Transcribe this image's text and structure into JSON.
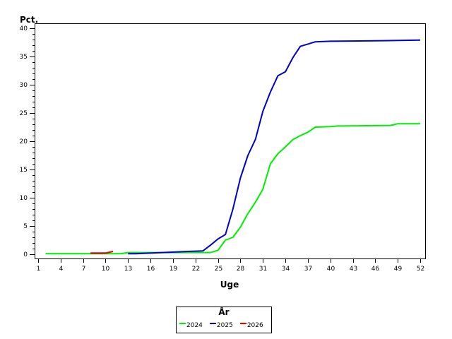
{
  "chart_data": {
    "type": "line",
    "title": "",
    "xlabel": "Uge",
    "ylabel": "Pct.",
    "xlim": [
      1,
      52
    ],
    "ylim": [
      0,
      40
    ],
    "x_ticks": [
      1,
      4,
      7,
      10,
      13,
      16,
      19,
      22,
      25,
      28,
      31,
      34,
      37,
      40,
      43,
      46,
      49,
      52
    ],
    "y_ticks": [
      0,
      5,
      10,
      15,
      20,
      25,
      30,
      35,
      40
    ],
    "y_minor_step": 1,
    "grid": false,
    "legend": {
      "title": "År",
      "position": "bottom"
    },
    "series": [
      {
        "name": "2024",
        "color": "#00ee00",
        "x": [
          2,
          12,
          13,
          24,
          25,
          26,
          27,
          28,
          29,
          30,
          31,
          32,
          33,
          34,
          35,
          36,
          37,
          38,
          40,
          41,
          48,
          49,
          52
        ],
        "values": [
          0.1,
          0.1,
          0.3,
          0.3,
          0.7,
          2.5,
          3.0,
          4.8,
          7.2,
          9.2,
          11.5,
          16.0,
          17.8,
          19.0,
          20.3,
          21.0,
          21.6,
          22.5,
          22.6,
          22.7,
          22.8,
          23.1,
          23.1
        ]
      },
      {
        "name": "2025",
        "color": "#0000cc",
        "x": [
          8,
          10,
          11,
          13,
          14,
          21,
          23,
          24,
          25,
          26,
          27,
          28,
          29,
          30,
          31,
          32,
          33,
          34,
          35,
          36,
          37,
          38,
          40,
          47,
          52
        ],
        "values": [
          0.2,
          0.2,
          null,
          0.1,
          0.1,
          0.5,
          0.6,
          1.6,
          2.7,
          3.5,
          8.0,
          13.5,
          17.5,
          20.3,
          25.3,
          28.7,
          31.6,
          32.3,
          34.8,
          36.8,
          37.2,
          37.6,
          37.7,
          37.8,
          37.9
        ]
      },
      {
        "name": "2026",
        "color": "#ee0000",
        "x": [
          8,
          10,
          11
        ],
        "values": [
          0.2,
          0.2,
          0.5
        ]
      }
    ]
  },
  "axes": {
    "y_title": "Pct.",
    "x_title": "Uge"
  },
  "legend": {
    "title": "År",
    "items": [
      {
        "label": "2024",
        "color": "#00ee00"
      },
      {
        "label": "2025",
        "color": "#0000cc"
      },
      {
        "label": "2026",
        "color": "#ee0000"
      }
    ]
  }
}
